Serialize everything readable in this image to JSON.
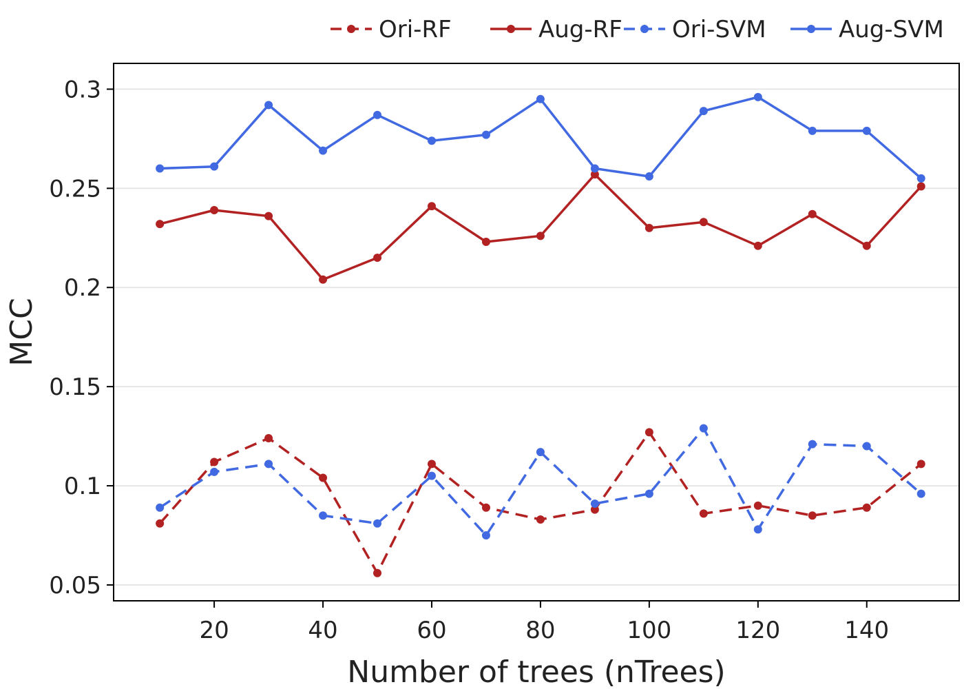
{
  "chart_data": {
    "type": "line",
    "title": "",
    "xlabel": "Number of trees (nTrees)",
    "ylabel": "MCC",
    "xlim": [
      1.5,
      157
    ],
    "ylim": [
      0.042,
      0.313
    ],
    "x": [
      10,
      20,
      30,
      40,
      50,
      60,
      70,
      80,
      90,
      100,
      110,
      120,
      130,
      140,
      150
    ],
    "xticks": [
      20,
      40,
      60,
      80,
      100,
      120,
      140
    ],
    "xtick_labels": [
      "20",
      "40",
      "60",
      "80",
      "100",
      "120",
      "140"
    ],
    "yticks": [
      0.05,
      0.1,
      0.15,
      0.2,
      0.25,
      0.3
    ],
    "ytick_labels": [
      "0.05",
      "0.1",
      "0.15",
      "0.2",
      "0.25",
      "0.3"
    ],
    "grid": "horizontal",
    "legend_position": "top-right",
    "series": [
      {
        "name": "Ori-RF",
        "color": "#b22222",
        "dash": true,
        "values": [
          0.081,
          0.112,
          0.124,
          0.104,
          0.056,
          0.111,
          0.089,
          0.083,
          0.088,
          0.127,
          0.086,
          0.09,
          0.085,
          0.089,
          0.111
        ]
      },
      {
        "name": "Aug-RF",
        "color": "#b22222",
        "dash": false,
        "values": [
          0.232,
          0.239,
          0.236,
          0.204,
          0.215,
          0.241,
          0.223,
          0.226,
          0.257,
          0.23,
          0.233,
          0.221,
          0.237,
          0.221,
          0.251
        ]
      },
      {
        "name": "Ori-SVM",
        "color": "#4169e1",
        "dash": true,
        "values": [
          0.089,
          0.107,
          0.111,
          0.085,
          0.081,
          0.105,
          0.075,
          0.117,
          0.091,
          0.096,
          0.129,
          0.078,
          0.121,
          0.12,
          0.096
        ]
      },
      {
        "name": "Aug-SVM",
        "color": "#4169e1",
        "dash": false,
        "values": [
          0.26,
          0.261,
          0.292,
          0.269,
          0.287,
          0.274,
          0.277,
          0.295,
          0.26,
          0.256,
          0.289,
          0.296,
          0.279,
          0.279,
          0.255
        ]
      }
    ]
  }
}
